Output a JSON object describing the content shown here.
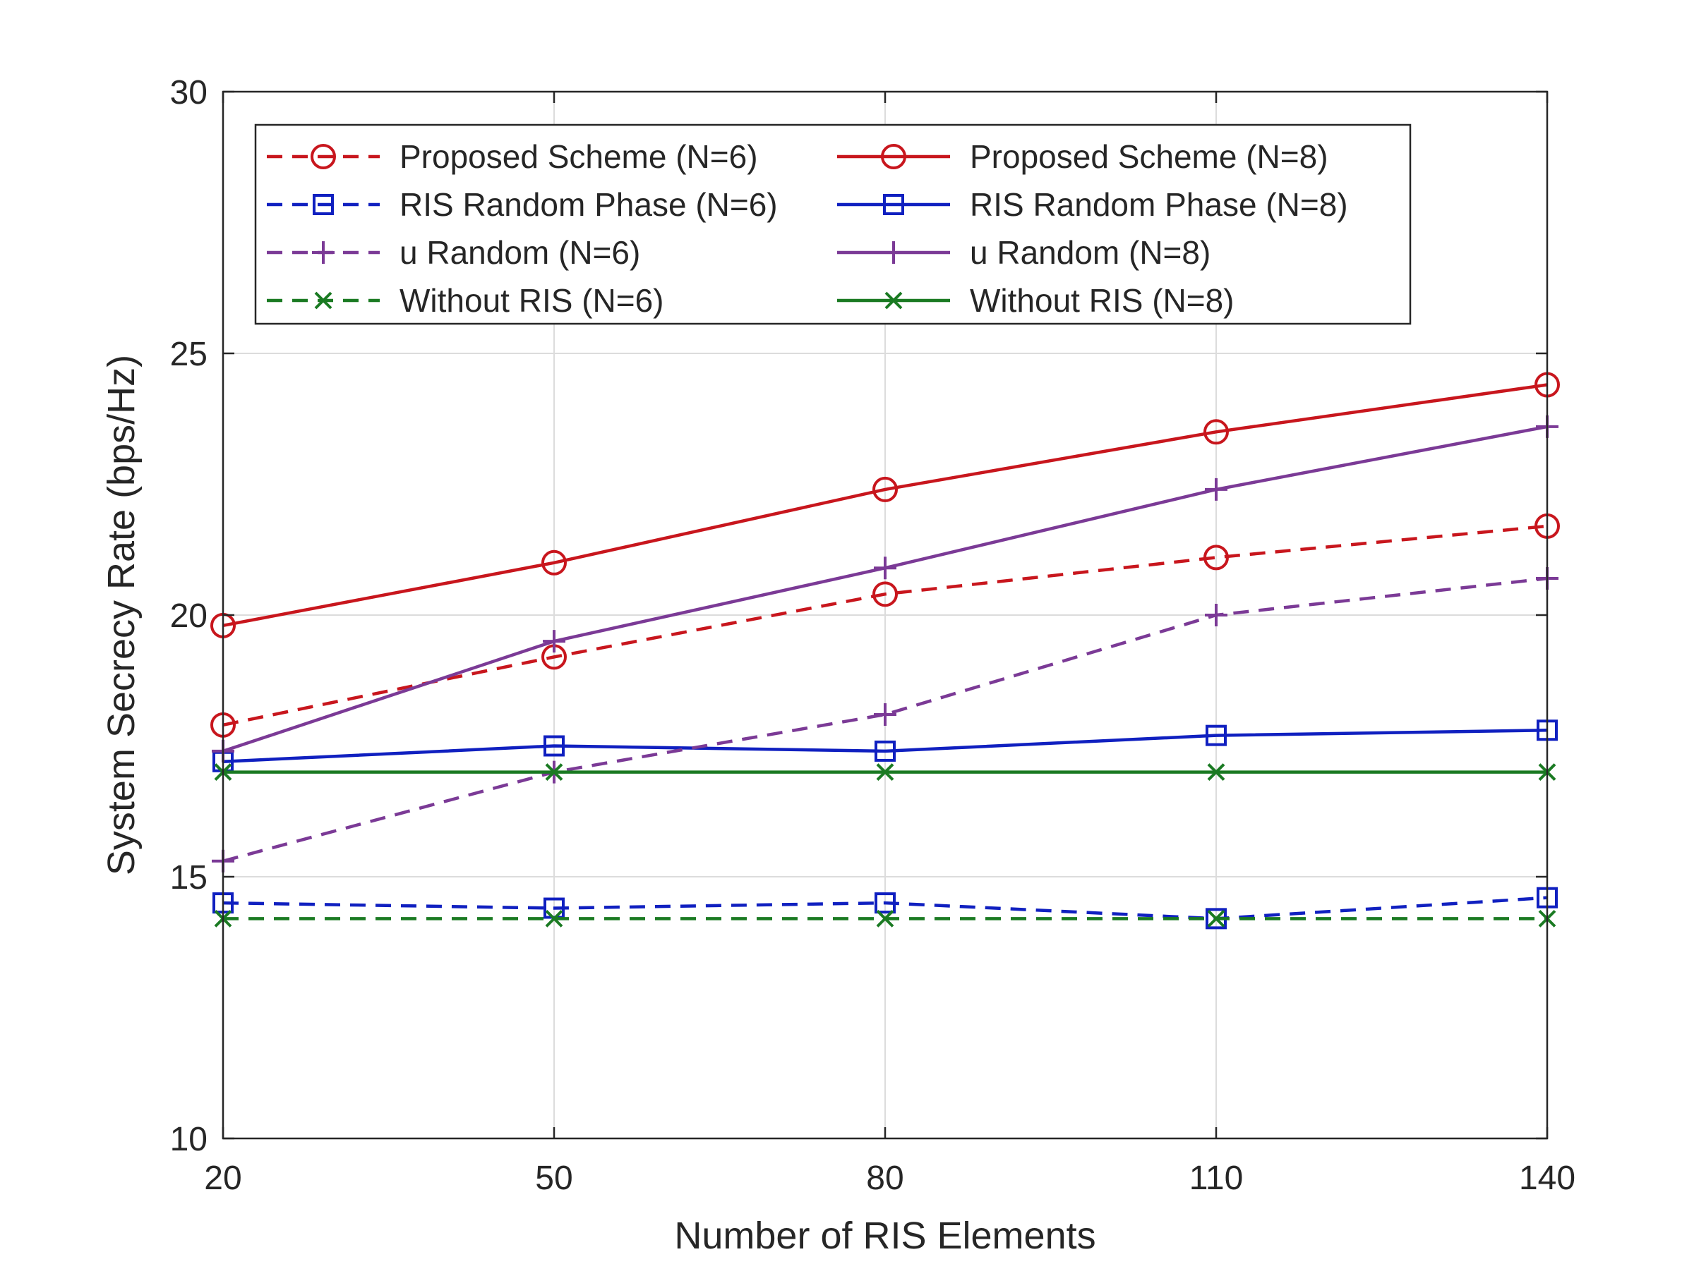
{
  "chart_data": {
    "type": "line",
    "title": "",
    "xlabel": "Number of RIS Elements",
    "ylabel": "System Secrecy Rate (bps/Hz)",
    "x": [
      20,
      50,
      80,
      110,
      140
    ],
    "xticks": [
      20,
      50,
      80,
      110,
      140
    ],
    "yticks": [
      10,
      15,
      20,
      25,
      30
    ],
    "xlim": [
      20,
      140
    ],
    "ylim": [
      10,
      30
    ],
    "grid": true,
    "legend_position": "top",
    "series": [
      {
        "name": "Proposed Scheme (N=6)",
        "values": [
          17.9,
          19.2,
          20.4,
          21.1,
          21.7
        ],
        "color": "#c8161d",
        "dash": "dashed",
        "marker": "circle"
      },
      {
        "name": "Proposed Scheme (N=8)",
        "values": [
          19.8,
          21.0,
          22.4,
          23.5,
          24.4
        ],
        "color": "#c8161d",
        "dash": "solid",
        "marker": "circle"
      },
      {
        "name": "RIS Random Phase (N=6)",
        "values": [
          14.5,
          14.4,
          14.5,
          14.2,
          14.6
        ],
        "color": "#1020c0",
        "dash": "dashed",
        "marker": "square"
      },
      {
        "name": "RIS Random Phase (N=8)",
        "values": [
          17.2,
          17.5,
          17.4,
          17.7,
          17.8
        ],
        "color": "#1020c0",
        "dash": "solid",
        "marker": "square"
      },
      {
        "name": "u Random (N=6)",
        "values": [
          15.3,
          17.0,
          18.1,
          20.0,
          20.7
        ],
        "color": "#7b3a96",
        "dash": "dashed",
        "marker": "plus"
      },
      {
        "name": "u Random (N=8)",
        "values": [
          17.4,
          19.5,
          20.9,
          22.4,
          23.6
        ],
        "color": "#7b3a96",
        "dash": "solid",
        "marker": "plus"
      },
      {
        "name": "Without RIS (N=6)",
        "values": [
          14.2,
          14.2,
          14.2,
          14.2,
          14.2
        ],
        "color": "#1a7a22",
        "dash": "dashed",
        "marker": "x"
      },
      {
        "name": "Without RIS (N=8)",
        "values": [
          17.0,
          17.0,
          17.0,
          17.0,
          17.0
        ],
        "color": "#1a7a22",
        "dash": "solid",
        "marker": "x"
      }
    ]
  }
}
